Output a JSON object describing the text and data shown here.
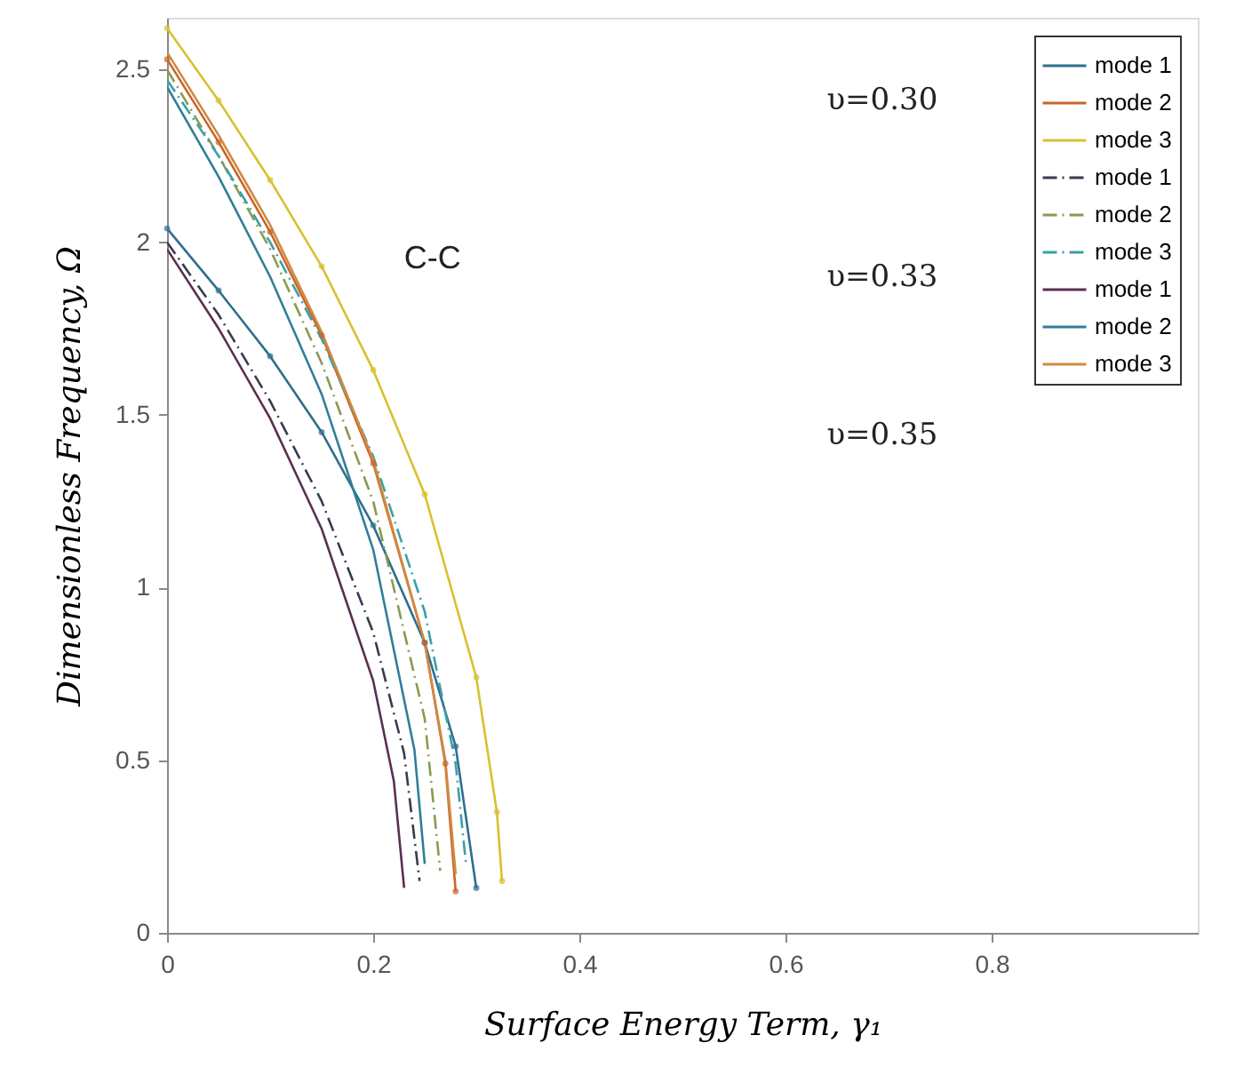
{
  "chart_data": {
    "type": "line",
    "xlabel": "Surface Energy Term, γ₁",
    "ylabel": "Dimensionless Frequency, Ω",
    "xlim": [
      0,
      1
    ],
    "ylim": [
      0,
      2.65
    ],
    "xticks": [
      0,
      0.2,
      0.4,
      0.6,
      0.8
    ],
    "yticks": [
      0,
      0.5,
      1,
      1.5,
      2,
      2.5
    ],
    "grid": false,
    "legend": "top right",
    "annotations": [
      "C-C",
      "υ=0.30",
      "υ=0.33",
      "υ=0.35"
    ],
    "series": [
      {
        "name": "mode 1",
        "color": "#2f6f8f",
        "line_style": "solid",
        "marker": "circle",
        "x": [
          0,
          0.05,
          0.1,
          0.15,
          0.2,
          0.25,
          0.28,
          0.3
        ],
        "values": [
          2.04,
          1.86,
          1.67,
          1.45,
          1.18,
          0.84,
          0.54,
          0.13
        ]
      },
      {
        "name": "mode 2",
        "color": "#c8662a",
        "line_style": "solid",
        "marker": "circle",
        "x": [
          0,
          0.05,
          0.1,
          0.15,
          0.2,
          0.25,
          0.27,
          0.28
        ],
        "values": [
          2.53,
          2.29,
          2.03,
          1.73,
          1.36,
          0.84,
          0.49,
          0.12
        ]
      },
      {
        "name": "mode 3",
        "color": "#d9c030",
        "line_style": "solid",
        "marker": "circle",
        "x": [
          0,
          0.05,
          0.1,
          0.15,
          0.2,
          0.25,
          0.3,
          0.32,
          0.325
        ],
        "values": [
          2.62,
          2.41,
          2.18,
          1.93,
          1.63,
          1.27,
          0.74,
          0.35,
          0.15
        ]
      },
      {
        "name": "mode 1",
        "color": "#3a3a50",
        "line_style": "dashdot",
        "x": [
          0,
          0.05,
          0.1,
          0.15,
          0.2,
          0.23,
          0.245
        ],
        "values": [
          2.0,
          1.79,
          1.54,
          1.25,
          0.87,
          0.52,
          0.15
        ]
      },
      {
        "name": "mode 2",
        "color": "#8a9a50",
        "line_style": "dashdot",
        "x": [
          0,
          0.05,
          0.1,
          0.15,
          0.2,
          0.25,
          0.265
        ],
        "values": [
          2.5,
          2.25,
          1.98,
          1.65,
          1.25,
          0.62,
          0.18
        ]
      },
      {
        "name": "mode 3",
        "color": "#3aa0a8",
        "line_style": "dashdot",
        "x": [
          0,
          0.05,
          0.1,
          0.15,
          0.2,
          0.25,
          0.28,
          0.29
        ],
        "values": [
          2.47,
          2.25,
          2.0,
          1.72,
          1.38,
          0.93,
          0.49,
          0.2
        ]
      },
      {
        "name": "mode 1",
        "color": "#5a3050",
        "line_style": "solid",
        "x": [
          0,
          0.05,
          0.1,
          0.15,
          0.2,
          0.22,
          0.23
        ],
        "values": [
          1.98,
          1.75,
          1.49,
          1.17,
          0.73,
          0.44,
          0.13
        ]
      },
      {
        "name": "mode 2",
        "color": "#2f7f9a",
        "line_style": "solid",
        "x": [
          0,
          0.05,
          0.1,
          0.15,
          0.2,
          0.24,
          0.25
        ],
        "values": [
          2.45,
          2.19,
          1.9,
          1.56,
          1.11,
          0.53,
          0.2
        ]
      },
      {
        "name": "mode 3",
        "color": "#d08a40",
        "line_style": "solid",
        "x": [
          0,
          0.05,
          0.1,
          0.15,
          0.2,
          0.25,
          0.27,
          0.28
        ],
        "values": [
          2.55,
          2.31,
          2.05,
          1.74,
          1.37,
          0.84,
          0.5,
          0.17
        ]
      }
    ]
  }
}
